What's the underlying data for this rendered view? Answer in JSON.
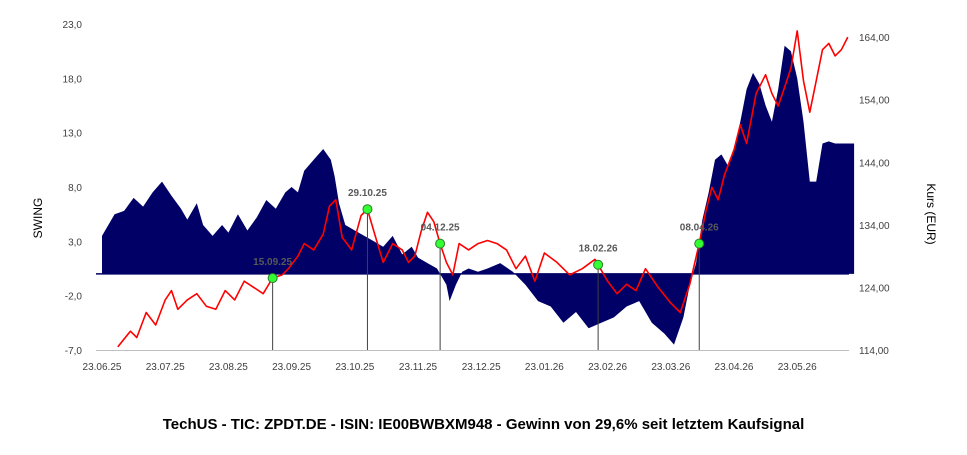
{
  "caption": "TechUS - TIC: ZPDT.DE - ISIN: IE00BWBXM948 - Gewinn von 29,6% seit letztem Kaufsignal",
  "chart_data": {
    "type": "area+line",
    "xlabels": [
      "23.06.25",
      "23.07.25",
      "23.08.25",
      "23.09.25",
      "23.10.25",
      "23.11.25",
      "23.12.25",
      "23.01.26",
      "23.02.26",
      "23.03.26",
      "23.04.26",
      "23.05.26"
    ],
    "ylabel_left": "SWING",
    "ylabel_right": "Kurs (EUR)",
    "ylim_left": [
      -7,
      23
    ],
    "ylim_right": [
      114,
      166.1
    ],
    "yticks_left": [
      "23,0",
      "18,0",
      "13,0",
      "8,0",
      "3,0",
      "-2,0",
      "-7,0"
    ],
    "yticks_right": [
      "164,00",
      "154,00",
      "144,00",
      "134,00",
      "124,00",
      "114,00"
    ],
    "colors": {
      "swing": "#000066",
      "kurs": "#ff0000",
      "signal": "#33ff33",
      "signal_line": "#404040"
    },
    "swing": {
      "name": "SWING",
      "x": [
        0,
        0.2,
        0.35,
        0.5,
        0.65,
        0.8,
        0.95,
        1.1,
        1.25,
        1.35,
        1.5,
        1.6,
        1.75,
        1.9,
        2.0,
        2.15,
        2.3,
        2.45,
        2.6,
        2.75,
        2.9,
        3.0,
        3.1,
        3.2,
        3.35,
        3.5,
        3.62,
        3.68,
        3.75,
        3.85,
        4.0,
        4.15,
        4.3,
        4.45,
        4.6,
        4.75,
        4.9,
        5.0,
        5.15,
        5.3,
        5.45,
        5.5,
        5.6,
        5.7,
        5.8,
        5.95,
        6.1,
        6.3,
        6.5,
        6.7,
        6.9,
        7.1,
        7.3,
        7.5,
        7.7,
        7.9,
        8.1,
        8.3,
        8.5,
        8.7,
        8.9,
        9.05,
        9.2,
        9.3,
        9.4,
        9.5,
        9.6,
        9.7,
        9.8,
        9.9,
        10.0,
        10.1,
        10.2,
        10.3,
        10.4,
        10.5,
        10.6,
        10.7,
        10.8,
        10.9,
        11.0,
        11.1,
        11.2,
        11.3,
        11.4,
        11.5,
        11.6,
        11.7,
        11.8,
        11.9
      ],
      "values": [
        3.5,
        5.5,
        5.8,
        7.0,
        6.2,
        7.5,
        8.5,
        7.2,
        6.0,
        5.0,
        6.5,
        4.5,
        3.5,
        4.5,
        3.8,
        5.5,
        4.0,
        5.2,
        6.8,
        6.0,
        7.5,
        8.0,
        7.5,
        9.5,
        10.5,
        11.5,
        10.5,
        9.0,
        6.5,
        4.5,
        4.0,
        3.5,
        3.0,
        2.5,
        3.5,
        1.8,
        2.5,
        1.5,
        1.0,
        0.5,
        -1.0,
        -2.5,
        -1.0,
        0.2,
        0.5,
        0.2,
        0.5,
        1.0,
        0.2,
        -1.0,
        -2.5,
        -3.0,
        -4.5,
        -3.5,
        -5.0,
        -4.5,
        -4.0,
        -3.0,
        -2.5,
        -4.5,
        -5.5,
        -6.5,
        -4.0,
        -1.0,
        1.0,
        5.0,
        7.5,
        10.5,
        11.0,
        10.0,
        11.5,
        14.0,
        17.0,
        18.5,
        17.5,
        15.5,
        14.0,
        17.0,
        21.0,
        20.5,
        18.0,
        14.0,
        8.5,
        8.5,
        12.0,
        12.2,
        12.0,
        12.0,
        12.0,
        12.0
      ]
    },
    "kurs": {
      "name": "Kurs (EUR)",
      "x": [
        0.25,
        0.45,
        0.55,
        0.7,
        0.85,
        1.0,
        1.1,
        1.2,
        1.35,
        1.5,
        1.65,
        1.8,
        1.95,
        2.1,
        2.25,
        2.4,
        2.55,
        2.7,
        2.85,
        2.95,
        3.1,
        3.2,
        3.35,
        3.5,
        3.6,
        3.7,
        3.8,
        3.95,
        4.1,
        4.2,
        4.3,
        4.45,
        4.6,
        4.75,
        4.85,
        4.95,
        5.05,
        5.15,
        5.25,
        5.35,
        5.45,
        5.55,
        5.65,
        5.8,
        5.95,
        6.1,
        6.25,
        6.4,
        6.55,
        6.7,
        6.85,
        7.0,
        7.2,
        7.4,
        7.6,
        7.8,
        8.0,
        8.15,
        8.3,
        8.45,
        8.6,
        8.8,
        9.0,
        9.15,
        9.3,
        9.45,
        9.55,
        9.65,
        9.75,
        9.85,
        10.0,
        10.1,
        10.2,
        10.35,
        10.5,
        10.6,
        10.7,
        10.8,
        10.9,
        11.0,
        11.1,
        11.2,
        11.3,
        11.4,
        11.5,
        11.6,
        11.7,
        11.8
      ],
      "values": [
        114.5,
        117,
        116,
        120,
        118,
        122,
        123.5,
        120.5,
        122,
        123,
        121,
        120.5,
        123.5,
        122,
        125,
        124,
        123,
        125.5,
        126,
        127,
        129,
        131,
        130,
        132.5,
        137,
        138,
        132,
        130,
        135.5,
        136.5,
        133,
        128,
        131,
        130,
        128,
        129,
        133,
        136,
        134.5,
        131,
        128,
        126,
        131,
        130,
        131,
        131.5,
        131,
        130,
        127,
        129,
        125,
        129.5,
        128,
        126,
        127,
        128.5,
        125,
        123,
        124.5,
        123.5,
        127,
        124,
        121.5,
        120,
        124.5,
        131,
        136,
        140,
        138,
        142,
        146,
        150,
        147,
        155,
        158,
        155,
        153,
        156,
        159,
        165,
        157,
        152,
        157,
        162,
        163,
        161,
        162,
        164
      ]
    },
    "signals": [
      {
        "label": "15.09.25",
        "x": 2.7
      },
      {
        "label": "29.10.25",
        "x": 4.2
      },
      {
        "label": "04.12.25",
        "x": 5.35
      },
      {
        "label": "18.02.26",
        "x": 7.85
      },
      {
        "label": "08.04.26",
        "x": 9.45
      }
    ]
  }
}
